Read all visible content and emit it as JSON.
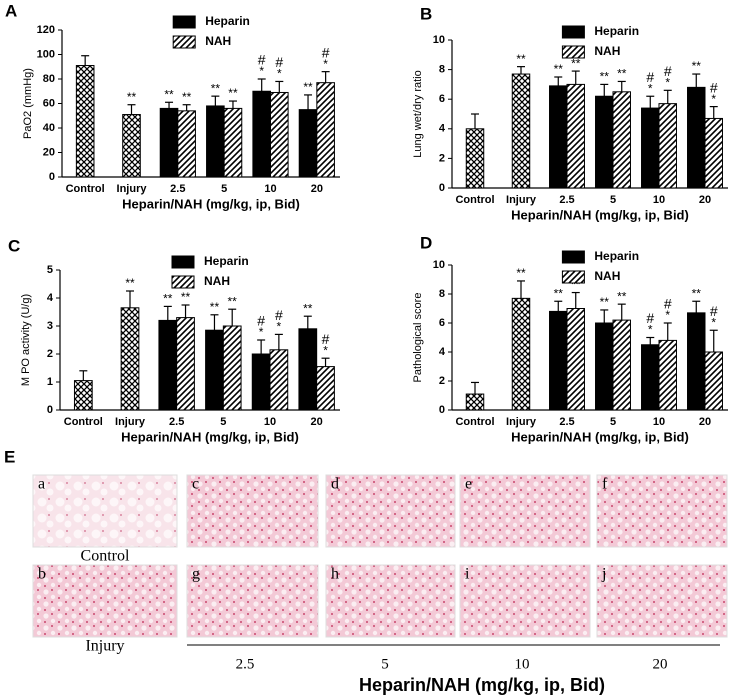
{
  "chart_data": [
    {
      "type": "bar",
      "panel": "A",
      "ylabel": "PaO2 (mmHg)",
      "xlabel": "Heparin/NAH (mg/kg, ip, Bid)",
      "categories": [
        "Control",
        "Injury",
        "2.5",
        "5",
        "10",
        "20"
      ],
      "ylim": [
        0,
        120
      ],
      "yticks": [
        0,
        20,
        40,
        60,
        80,
        100,
        120
      ],
      "single": {
        "pattern": "crosshatch",
        "values": [
          91,
          51,
          null,
          null,
          null,
          null
        ],
        "errors": [
          8,
          8,
          null,
          null,
          null,
          null
        ],
        "annotations": [
          null,
          [
            "**"
          ],
          null,
          null,
          null,
          null
        ]
      },
      "series": [
        {
          "name": "Heparin",
          "color": "#000000",
          "values": [
            null,
            null,
            56,
            58,
            70,
            55
          ],
          "errors": [
            null,
            null,
            5,
            8,
            10,
            12
          ],
          "annotations": [
            null,
            null,
            [
              "**"
            ],
            [
              "**"
            ],
            [
              "#",
              "*"
            ],
            [
              "**"
            ]
          ]
        },
        {
          "name": "NAH",
          "color": "#000000",
          "pattern": "diagonal",
          "values": [
            null,
            null,
            54,
            56,
            69,
            77
          ],
          "errors": [
            null,
            null,
            5,
            6,
            9,
            9
          ],
          "annotations": [
            null,
            null,
            [
              "**"
            ],
            [
              "**"
            ],
            [
              "#",
              "*"
            ],
            [
              "#",
              "*"
            ]
          ]
        }
      ]
    },
    {
      "type": "bar",
      "panel": "B",
      "ylabel": "Lung wet/dry ratio",
      "xlabel": "Heparin/NAH (mg/kg, ip, Bid)",
      "categories": [
        "Control",
        "Injury",
        "2.5",
        "5",
        "10",
        "20"
      ],
      "ylim": [
        0,
        10
      ],
      "yticks": [
        0,
        2,
        4,
        6,
        8,
        10
      ],
      "single": {
        "pattern": "crosshatch",
        "values": [
          4.0,
          7.7,
          null,
          null,
          null,
          null
        ],
        "errors": [
          1.0,
          0.5,
          null,
          null,
          null,
          null
        ],
        "annotations": [
          null,
          [
            "**"
          ],
          null,
          null,
          null,
          null
        ]
      },
      "series": [
        {
          "name": "Heparin",
          "color": "#000000",
          "values": [
            null,
            null,
            6.9,
            6.2,
            5.4,
            6.8
          ],
          "errors": [
            null,
            null,
            0.6,
            0.8,
            0.8,
            0.9
          ],
          "annotations": [
            null,
            null,
            [
              "**"
            ],
            [
              "**"
            ],
            [
              "#",
              "*"
            ],
            [
              "**"
            ]
          ]
        },
        {
          "name": "NAH",
          "color": "#000000",
          "pattern": "diagonal",
          "values": [
            null,
            null,
            7.0,
            6.5,
            5.7,
            4.7
          ],
          "errors": [
            null,
            null,
            0.9,
            0.7,
            0.9,
            0.8
          ],
          "annotations": [
            null,
            null,
            [
              "**"
            ],
            [
              "**"
            ],
            [
              "#",
              "*"
            ],
            [
              "#",
              "*"
            ]
          ]
        }
      ]
    },
    {
      "type": "bar",
      "panel": "C",
      "ylabel": "M PO activity (U/g)",
      "xlabel": "Heparin/NAH (mg/kg, ip, Bid)",
      "categories": [
        "Control",
        "Injury",
        "2.5",
        "5",
        "10",
        "20"
      ],
      "ylim": [
        0,
        5
      ],
      "yticks": [
        0,
        1,
        2,
        3,
        4,
        5
      ],
      "single": {
        "pattern": "crosshatch",
        "values": [
          1.05,
          3.65,
          null,
          null,
          null,
          null
        ],
        "errors": [
          0.35,
          0.6,
          null,
          null,
          null,
          null
        ],
        "annotations": [
          null,
          [
            "**"
          ],
          null,
          null,
          null,
          null
        ]
      },
      "series": [
        {
          "name": "Heparin",
          "color": "#000000",
          "values": [
            null,
            null,
            3.2,
            2.85,
            2.0,
            2.9
          ],
          "errors": [
            null,
            null,
            0.5,
            0.55,
            0.5,
            0.45
          ],
          "annotations": [
            null,
            null,
            [
              "**"
            ],
            [
              "**"
            ],
            [
              "#",
              "*"
            ],
            [
              "**"
            ]
          ]
        },
        {
          "name": "NAH",
          "color": "#000000",
          "pattern": "diagonal",
          "values": [
            null,
            null,
            3.3,
            3.0,
            2.15,
            1.55
          ],
          "errors": [
            null,
            null,
            0.45,
            0.6,
            0.55,
            0.3
          ],
          "annotations": [
            null,
            null,
            [
              "**"
            ],
            [
              "**"
            ],
            [
              "#",
              "*"
            ],
            [
              "#",
              "*"
            ]
          ]
        }
      ]
    },
    {
      "type": "bar",
      "panel": "D",
      "ylabel": "Pathological score",
      "xlabel": "Heparin/NAH (mg/kg, ip, Bid)",
      "categories": [
        "Control",
        "Injury",
        "2.5",
        "5",
        "10",
        "20"
      ],
      "ylim": [
        0,
        10
      ],
      "yticks": [
        0,
        2,
        4,
        6,
        8,
        10
      ],
      "single": {
        "pattern": "crosshatch",
        "values": [
          1.1,
          7.7,
          null,
          null,
          null,
          null
        ],
        "errors": [
          0.8,
          1.2,
          null,
          null,
          null,
          null
        ],
        "annotations": [
          null,
          [
            "**"
          ],
          null,
          null,
          null,
          null
        ]
      },
      "series": [
        {
          "name": "Heparin",
          "color": "#000000",
          "values": [
            null,
            null,
            6.8,
            6.0,
            4.5,
            6.7
          ],
          "errors": [
            null,
            null,
            0.7,
            0.9,
            0.5,
            0.8
          ],
          "annotations": [
            null,
            null,
            [
              "**"
            ],
            [
              "**"
            ],
            [
              "#",
              "*"
            ],
            [
              "**"
            ]
          ]
        },
        {
          "name": "NAH",
          "color": "#000000",
          "pattern": "diagonal",
          "values": [
            null,
            null,
            7.0,
            6.2,
            4.8,
            4.0
          ],
          "errors": [
            null,
            null,
            1.1,
            1.1,
            1.2,
            1.5
          ],
          "annotations": [
            null,
            null,
            [
              "**"
            ],
            [
              "**"
            ],
            [
              "#",
              "*"
            ],
            [
              "#",
              "*"
            ]
          ]
        }
      ]
    }
  ],
  "micrographs": {
    "panel": "E",
    "images": [
      "a",
      "b",
      "c",
      "d",
      "e",
      "f",
      "g",
      "h",
      "i",
      "j"
    ],
    "control": "Control",
    "injury": "Injury",
    "doses": [
      "2.5",
      "5",
      "10",
      "20"
    ],
    "xlabel": "Heparin/NAH (mg/kg, ip, Bid)"
  }
}
